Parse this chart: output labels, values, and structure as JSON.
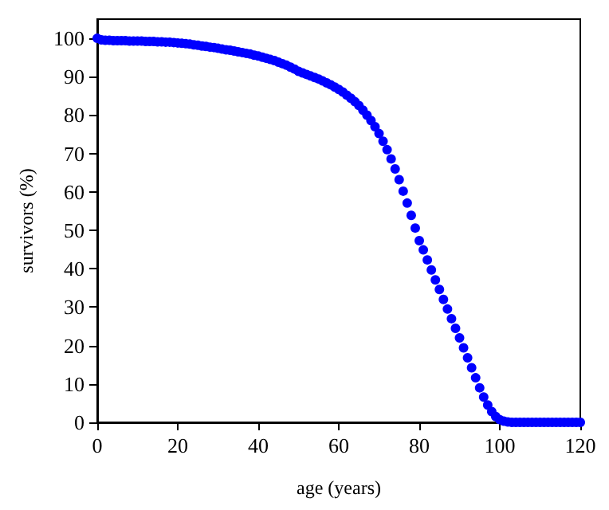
{
  "chart_data": {
    "type": "scatter",
    "xlabel": "age (years)",
    "ylabel": "survivors (%)",
    "x": [
      0,
      1,
      2,
      3,
      4,
      5,
      6,
      7,
      8,
      9,
      10,
      11,
      12,
      13,
      14,
      15,
      16,
      17,
      18,
      19,
      20,
      21,
      22,
      23,
      24,
      25,
      26,
      27,
      28,
      29,
      30,
      31,
      32,
      33,
      34,
      35,
      36,
      37,
      38,
      39,
      40,
      41,
      42,
      43,
      44,
      45,
      46,
      47,
      48,
      49,
      50,
      51,
      52,
      53,
      54,
      55,
      56,
      57,
      58,
      59,
      60,
      61,
      62,
      63,
      64,
      65,
      66,
      67,
      68,
      69,
      70,
      71,
      72,
      73,
      74,
      75,
      76,
      77,
      78,
      79,
      80,
      81,
      82,
      83,
      84,
      85,
      86,
      87,
      88,
      89,
      90,
      91,
      92,
      93,
      94,
      95,
      96,
      97,
      98,
      99,
      100,
      101,
      102,
      103,
      104,
      105,
      106,
      107,
      108,
      109,
      110,
      111,
      112,
      113,
      114,
      115,
      116,
      117,
      118,
      119,
      120
    ],
    "series": [
      {
        "color": "#0000ff",
        "values": [
          100,
          99.6,
          99.5,
          99.5,
          99.4,
          99.4,
          99.4,
          99.4,
          99.3,
          99.3,
          99.3,
          99.3,
          99.2,
          99.2,
          99.2,
          99.1,
          99.1,
          99.0,
          99.0,
          98.9,
          98.8,
          98.7,
          98.6,
          98.5,
          98.3,
          98.2,
          98.0,
          97.9,
          97.7,
          97.6,
          97.4,
          97.2,
          97.0,
          96.9,
          96.7,
          96.5,
          96.3,
          96.1,
          95.9,
          95.6,
          95.4,
          95.1,
          94.8,
          94.5,
          94.2,
          93.8,
          93.4,
          93.0,
          92.5,
          92.0,
          91.4,
          91.0,
          90.6,
          90.2,
          89.8,
          89.4,
          88.9,
          88.4,
          87.9,
          87.3,
          86.7,
          86.0,
          85.2,
          84.4,
          83.5,
          82.5,
          81.3,
          80.0,
          78.6,
          77.0,
          75.2,
          73.2,
          71.0,
          68.6,
          66.0,
          63.2,
          60.2,
          57.1,
          53.9,
          50.6,
          47.3,
          44.9,
          42.3,
          39.7,
          37.1,
          34.6,
          32.0,
          29.5,
          27.0,
          24.5,
          22.0,
          19.4,
          16.8,
          14.2,
          11.6,
          9.0,
          6.6,
          4.5,
          2.8,
          1.5,
          0.7,
          0.3,
          0.1,
          0,
          0,
          0,
          0,
          0,
          0,
          0,
          0,
          0,
          0,
          0,
          0,
          0,
          0,
          0,
          0,
          0,
          0
        ]
      }
    ],
    "xlim": [
      0,
      120
    ],
    "xticks": [
      0,
      20,
      40,
      60,
      80,
      100,
      120
    ],
    "ylim": [
      0,
      105
    ],
    "yticks": [
      0,
      10,
      20,
      30,
      40,
      50,
      60,
      70,
      80,
      90,
      100
    ],
    "marker": "circle"
  }
}
